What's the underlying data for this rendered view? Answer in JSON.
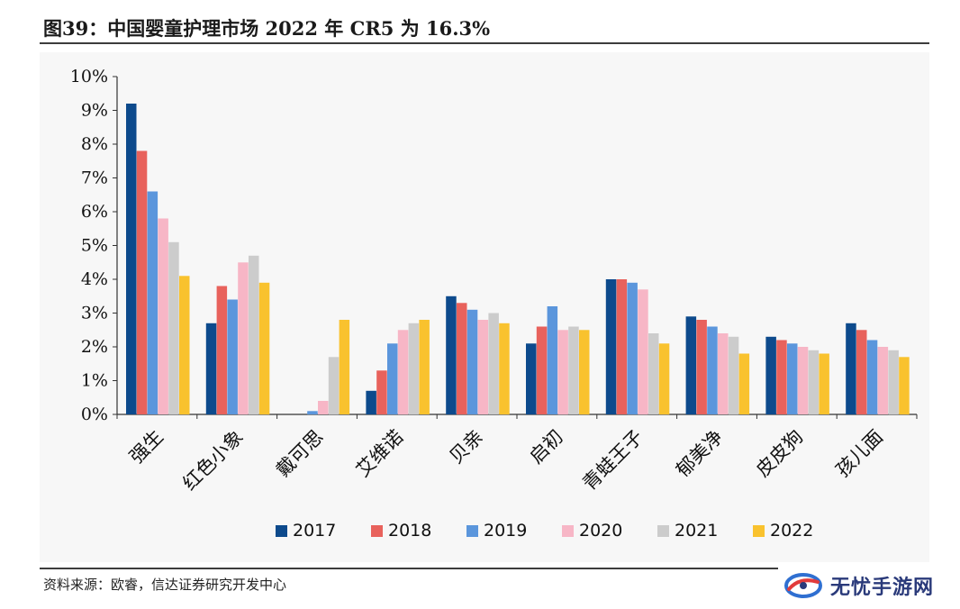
{
  "header": {
    "title": "图39：中国婴童护理市场 2022 年 CR5 为 16.3%"
  },
  "footer": {
    "source": "资料来源：欧睿，信达证券研究开发中心"
  },
  "watermark": {
    "text": "无忧手游网",
    "icon": "swirl-logo-icon"
  },
  "chart_data": {
    "type": "bar",
    "title": "",
    "xlabel": "",
    "ylabel": "",
    "ylim": [
      0,
      10
    ],
    "y_tick_values": [
      0,
      1,
      2,
      3,
      4,
      5,
      6,
      7,
      8,
      9,
      10
    ],
    "y_tick_labels": [
      "0%",
      "1%",
      "2%",
      "3%",
      "4%",
      "5%",
      "6%",
      "7%",
      "8%",
      "9%",
      "10%"
    ],
    "unit": "%",
    "grid": false,
    "legend_position": "bottom",
    "categories": [
      "强生",
      "红色小象",
      "戴可思",
      "艾维诺",
      "贝亲",
      "启初",
      "青蛙王子",
      "郁美净",
      "皮皮狗",
      "孩儿面"
    ],
    "series": [
      {
        "name": "2017",
        "color": "#0d4a8c",
        "values": [
          9.2,
          2.7,
          0.0,
          0.7,
          3.5,
          2.1,
          4.0,
          2.9,
          2.3,
          2.7
        ]
      },
      {
        "name": "2018",
        "color": "#e8625c",
        "values": [
          7.8,
          3.8,
          0.0,
          1.3,
          3.3,
          2.6,
          4.0,
          2.8,
          2.2,
          2.5
        ]
      },
      {
        "name": "2019",
        "color": "#5b96dc",
        "values": [
          6.6,
          3.4,
          0.1,
          2.1,
          3.1,
          3.2,
          3.9,
          2.6,
          2.1,
          2.2
        ]
      },
      {
        "name": "2020",
        "color": "#f7b6c6",
        "values": [
          5.8,
          4.5,
          0.4,
          2.5,
          2.8,
          2.5,
          3.7,
          2.4,
          2.0,
          2.0
        ]
      },
      {
        "name": "2021",
        "color": "#cccccc",
        "values": [
          5.1,
          4.7,
          1.7,
          2.7,
          3.0,
          2.6,
          2.4,
          2.3,
          1.9,
          1.9
        ]
      },
      {
        "name": "2022",
        "color": "#f9c22e",
        "values": [
          4.1,
          3.9,
          2.8,
          2.8,
          2.7,
          2.5,
          2.1,
          1.8,
          1.8,
          1.7
        ]
      }
    ]
  }
}
